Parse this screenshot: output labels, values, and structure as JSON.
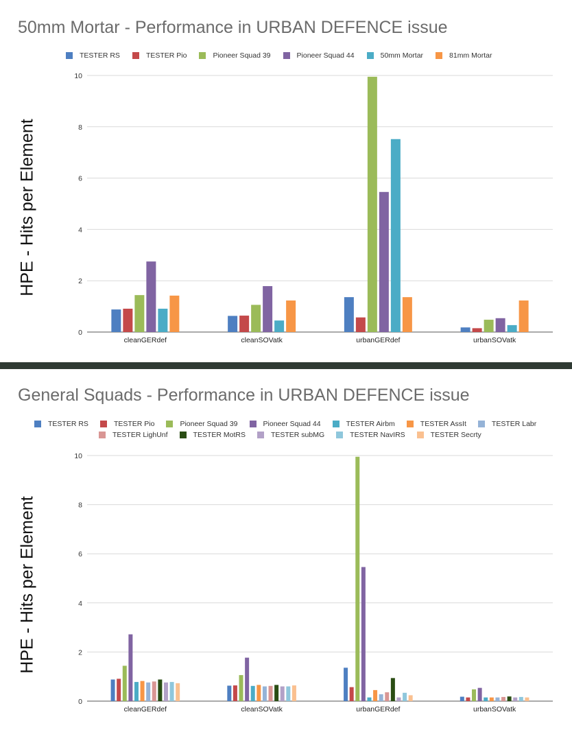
{
  "chart_data": [
    {
      "type": "bar",
      "title": "50mm Mortar - Performance in URBAN DEFENCE issue",
      "xlabel": "",
      "ylabel": "HPE - Hits per Element",
      "ylim": [
        0,
        10
      ],
      "yticks": [
        "0",
        "2",
        "4",
        "6",
        "8",
        "10"
      ],
      "grid": true,
      "legend_position": "top",
      "categories": [
        "cleanGERdef",
        "cleanSOVatk",
        "urbanGERdef",
        "urbanSOVatk"
      ],
      "series": [
        {
          "name": "TESTER RS",
          "color": "#4e7fc1",
          "values": [
            0.88,
            0.63,
            1.36,
            0.18
          ]
        },
        {
          "name": "TESTER Pio",
          "color": "#c4494a",
          "values": [
            0.91,
            0.64,
            0.57,
            0.15
          ]
        },
        {
          "name": "Pioneer Squad 39",
          "color": "#9bbb59",
          "values": [
            1.44,
            1.06,
            9.95,
            0.48
          ]
        },
        {
          "name": "Pioneer Squad 44",
          "color": "#8064a2",
          "values": [
            2.75,
            1.79,
            5.46,
            0.54
          ]
        },
        {
          "name": "50mm Mortar",
          "color": "#4bacc6",
          "values": [
            0.91,
            0.45,
            7.52,
            0.27
          ]
        },
        {
          "name": "81mm Mortar",
          "color": "#f79646",
          "values": [
            1.42,
            1.23,
            1.36,
            1.23
          ]
        }
      ]
    },
    {
      "type": "bar",
      "title": "General Squads - Performance in URBAN DEFENCE issue",
      "xlabel": "",
      "ylabel": "HPE - Hits per Element",
      "ylim": [
        0,
        10
      ],
      "yticks": [
        "0",
        "2",
        "4",
        "6",
        "8",
        "10"
      ],
      "grid": true,
      "legend_position": "top",
      "categories": [
        "cleanGERdef",
        "cleanSOVatk",
        "urbanGERdef",
        "urbanSOVatk"
      ],
      "series": [
        {
          "name": "TESTER RS",
          "color": "#4e7fc1",
          "values": [
            0.88,
            0.63,
            1.36,
            0.18
          ]
        },
        {
          "name": "TESTER Pio",
          "color": "#c4494a",
          "values": [
            0.91,
            0.64,
            0.57,
            0.15
          ]
        },
        {
          "name": "Pioneer Squad 39",
          "color": "#9bbb59",
          "values": [
            1.44,
            1.06,
            9.95,
            0.48
          ]
        },
        {
          "name": "Pioneer Squad 44",
          "color": "#8064a2",
          "values": [
            2.72,
            1.77,
            5.46,
            0.54
          ]
        },
        {
          "name": "TESTER Airbm",
          "color": "#4bacc6",
          "values": [
            0.78,
            0.62,
            0.15,
            0.15
          ]
        },
        {
          "name": "TESTER AssIt",
          "color": "#f79646",
          "values": [
            0.82,
            0.66,
            0.45,
            0.15
          ]
        },
        {
          "name": "TESTER Labr",
          "color": "#95b3d7",
          "values": [
            0.76,
            0.6,
            0.28,
            0.15
          ]
        },
        {
          "name": "TESTER LighUnf",
          "color": "#d99694",
          "values": [
            0.8,
            0.62,
            0.36,
            0.17
          ]
        },
        {
          "name": "TESTER MotRS",
          "color": "#2a4d14",
          "values": [
            0.88,
            0.66,
            0.94,
            0.19
          ]
        },
        {
          "name": "TESTER subMG",
          "color": "#b2a1c7",
          "values": [
            0.76,
            0.6,
            0.15,
            0.15
          ]
        },
        {
          "name": "TESTER NavIRS",
          "color": "#8fc7dc",
          "values": [
            0.78,
            0.6,
            0.34,
            0.17
          ]
        },
        {
          "name": "TESTER Secrty",
          "color": "#fac090",
          "values": [
            0.73,
            0.64,
            0.24,
            0.15
          ]
        }
      ]
    }
  ]
}
